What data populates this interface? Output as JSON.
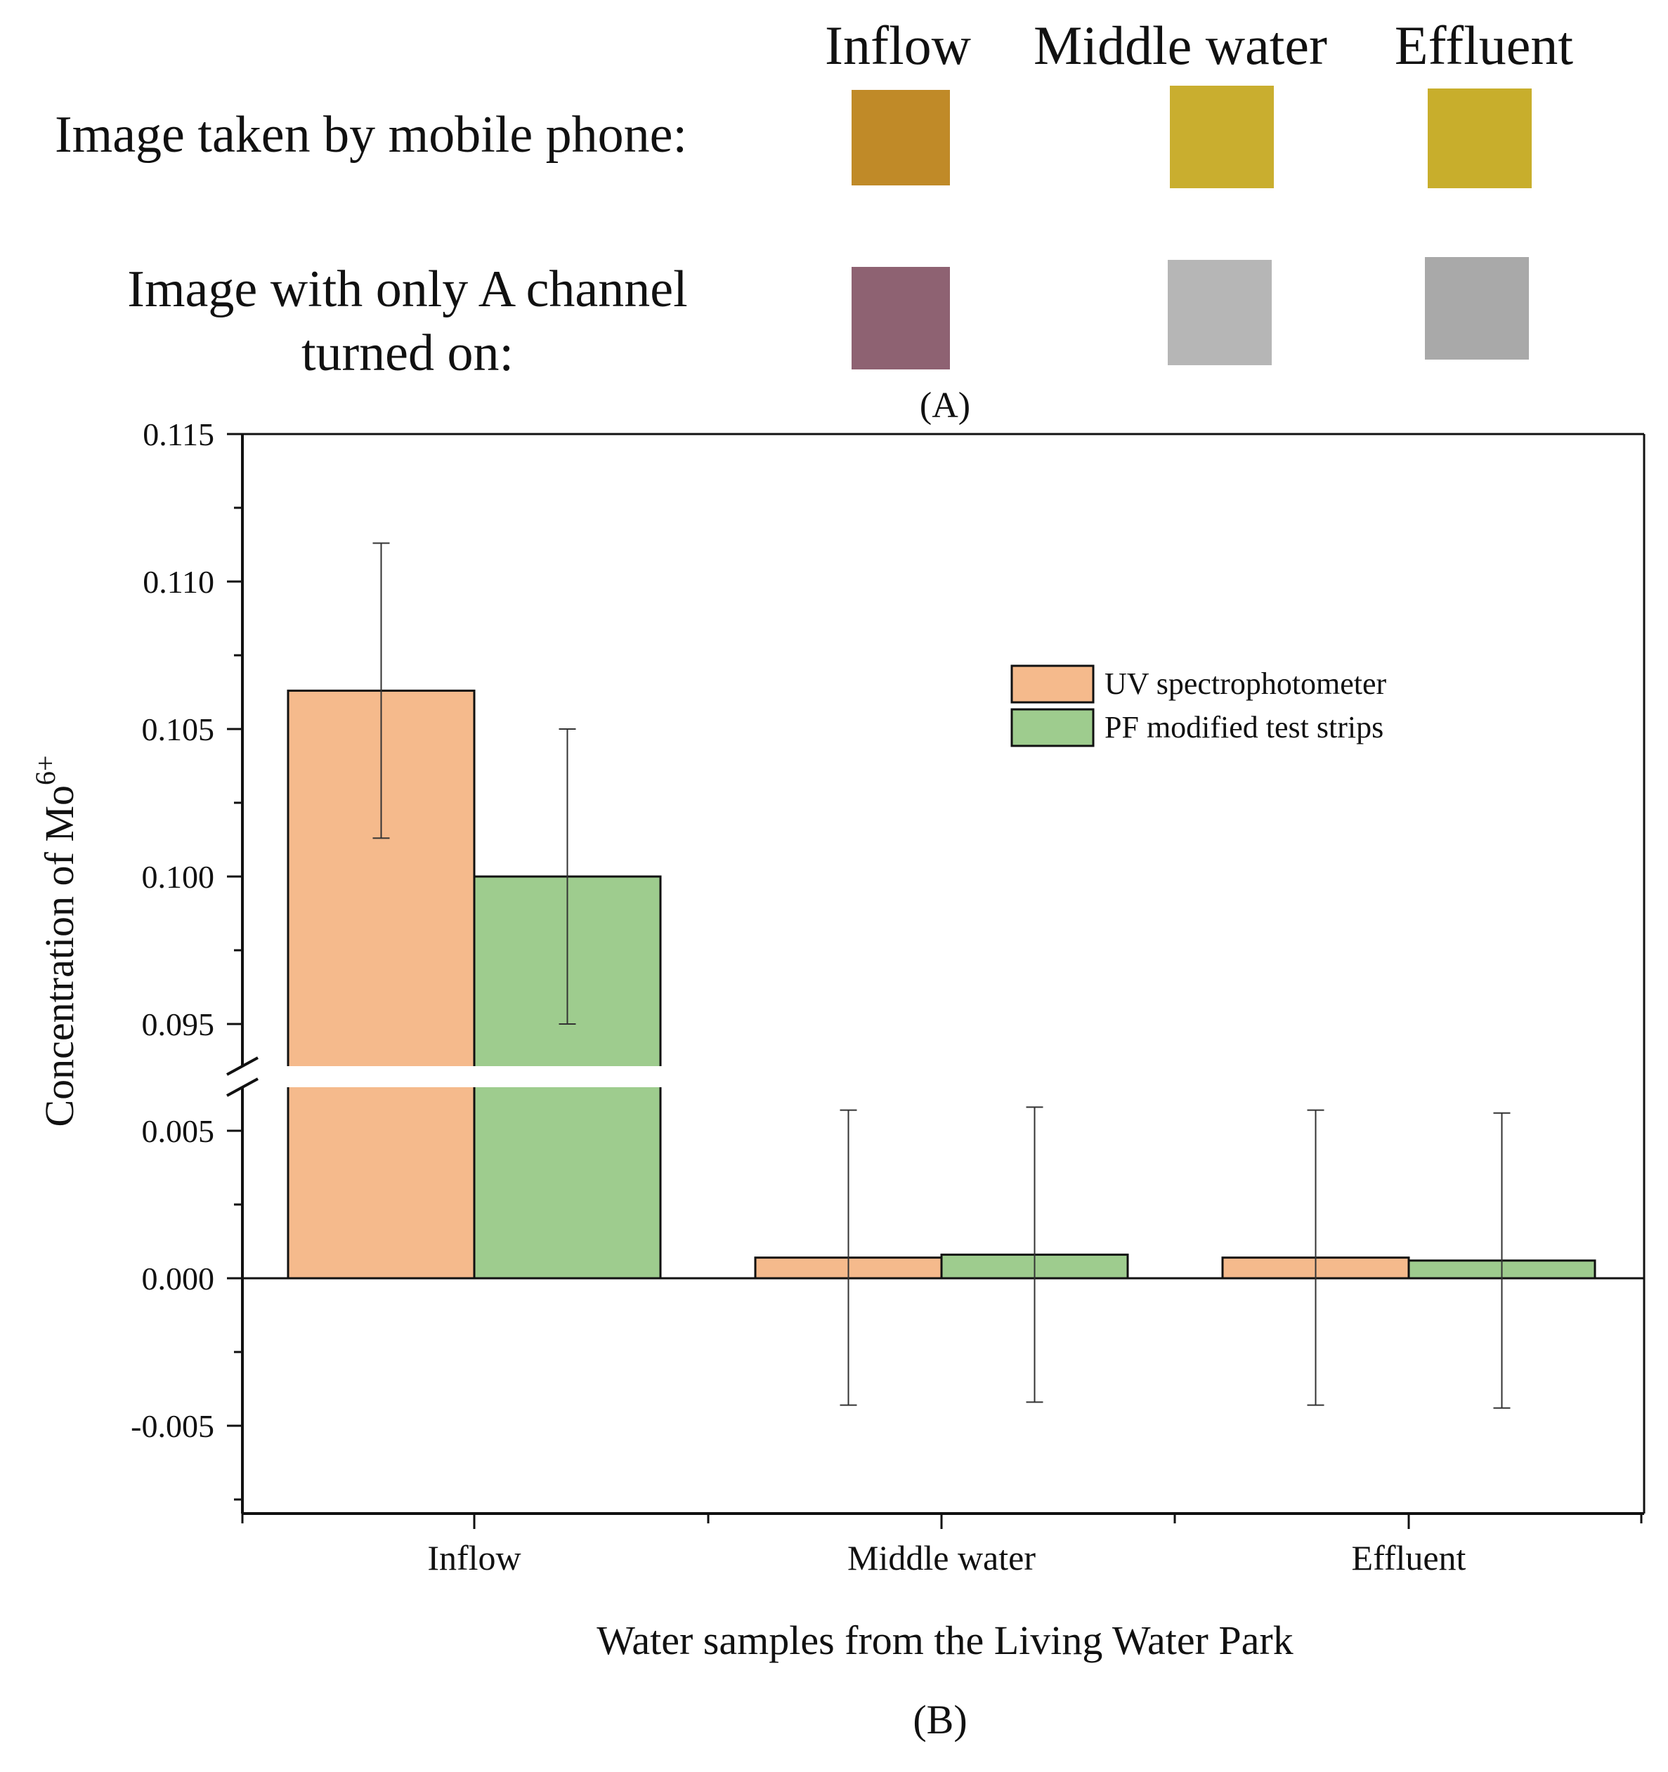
{
  "panel_a": {
    "columns": [
      "Inflow",
      "Middle water",
      "Effluent"
    ],
    "row1_label": "Image taken by mobile phone:",
    "row2_label_line1": "Image with only A channel",
    "row2_label_line2": "turned on:",
    "row1_colors": [
      "#C08A28",
      "#C9AE2F",
      "#C8AE2C"
    ],
    "row2_colors": [
      "#8E6272",
      "#B6B6B6",
      "#A9A9A9"
    ],
    "label": "(A)"
  },
  "panel_b_label": "(B)",
  "chart_data": {
    "type": "bar",
    "categories": [
      "Inflow",
      "Middle water",
      "Effluent"
    ],
    "series": [
      {
        "name": "UV spectrophotometer",
        "color": "#F5BA8C",
        "values": [
          0.1063,
          0.0007,
          0.0007
        ],
        "error": [
          0.005,
          0.005,
          0.005
        ]
      },
      {
        "name": "PF modified test strips",
        "color": "#9ECC8E",
        "values": [
          0.1,
          0.0008,
          0.0006
        ],
        "error": [
          0.005,
          0.005,
          0.005
        ]
      }
    ],
    "xlabel": "Water samples from the Living Water Park",
    "ylabel_main": "Concentration of Mo",
    "ylabel_sup": "6+",
    "axis_break": {
      "lower_range": [
        -0.0075,
        0.0065
      ],
      "upper_range": [
        0.0935,
        0.115
      ]
    },
    "yticks": [
      "-0.005",
      "0.000",
      "0.005",
      "0.095",
      "0.100",
      "0.105",
      "0.110",
      "0.115"
    ],
    "legend_position": "top-right",
    "grid": false
  }
}
